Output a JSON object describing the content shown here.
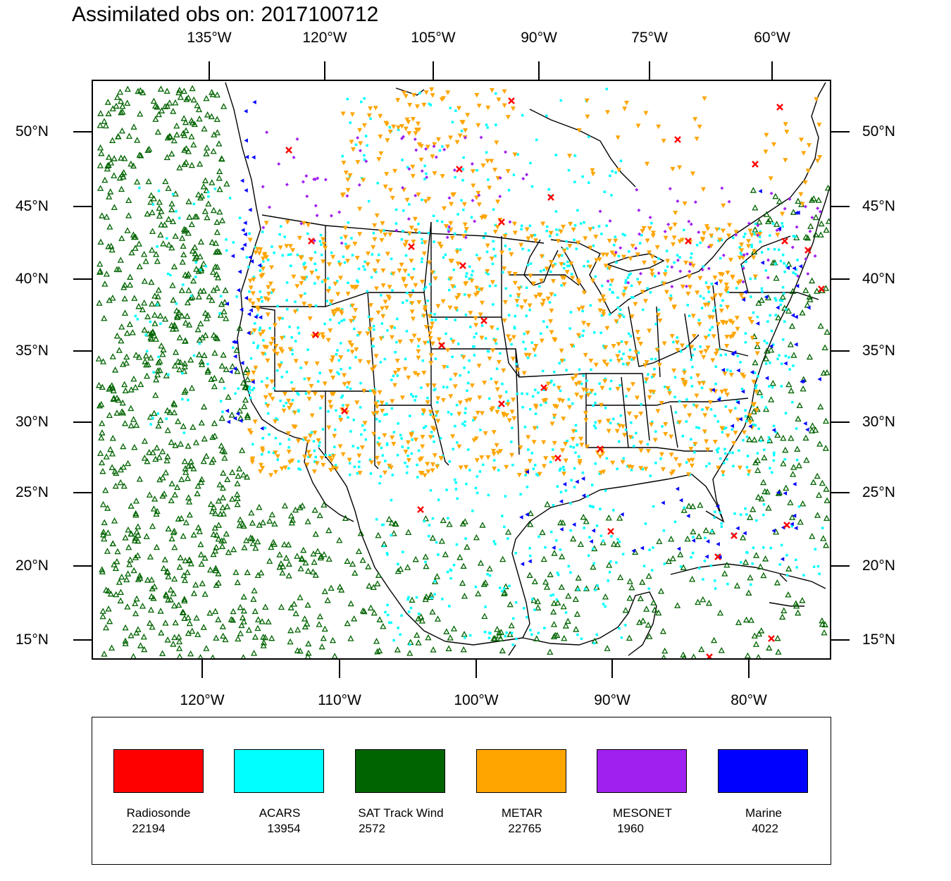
{
  "title": "Assimilated obs on: 2017100712",
  "top_axis_labels": [
    "135°W",
    "120°W",
    "105°W",
    "90°W",
    "75°W",
    "60°W"
  ],
  "bottom_axis_labels": [
    "120°W",
    "110°W",
    "100°W",
    "90°W",
    "80°W"
  ],
  "left_axis_labels": [
    "50°N",
    "45°N",
    "40°N",
    "35°N",
    "30°N",
    "25°N",
    "20°N",
    "15°N"
  ],
  "right_axis_labels": [
    "50°N",
    "45°N",
    "40°N",
    "35°N",
    "30°N",
    "25°N",
    "20°N",
    "15°N"
  ],
  "legend": [
    {
      "name": "Radiosonde",
      "count": "22194",
      "color": "#ff0000",
      "symbol": "x-mark"
    },
    {
      "name": "ACARS",
      "count": "13954",
      "color": "#00ffff",
      "symbol": "square-dot"
    },
    {
      "name": "SAT Track Wind",
      "count": "2572",
      "color": "#006400",
      "symbol": "triangle-up"
    },
    {
      "name": "METAR",
      "count": "22765",
      "color": "#ffa500",
      "symbol": "triangle-down"
    },
    {
      "name": "MESONET",
      "count": "1960",
      "color": "#a020f0",
      "symbol": "diamond"
    },
    {
      "name": "Marine",
      "count": "4022",
      "color": "#0000ff",
      "symbol": "triangle-left"
    }
  ],
  "map_extent": {
    "lon_range": [
      "128°W",
      "74°W"
    ],
    "lat_range": [
      "14°N",
      "53°N"
    ]
  }
}
